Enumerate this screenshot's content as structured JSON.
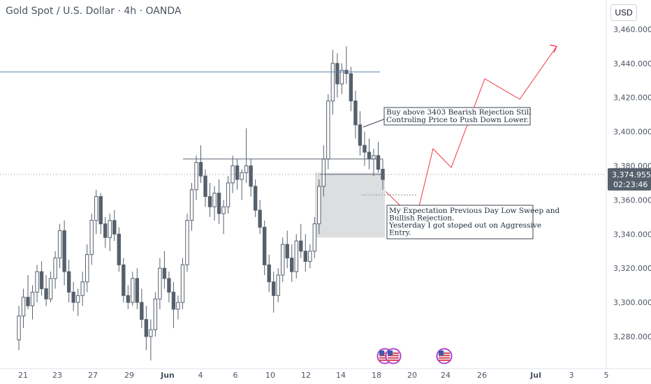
{
  "header": {
    "title": "Gold Spot / U.S. Dollar · 4h · OANDA",
    "currency": "USD"
  },
  "price_tag": {
    "price": "3,374.955",
    "countdown": "02:23:46"
  },
  "annotations": {
    "buy_note": [
      "Buy above 3403 Bearish Rejection Still",
      "Controling Price to Push Down Lower."
    ],
    "expect_note": [
      "My Expectation Previous Day Low Sweep and",
      "Bullish Rejection.",
      "Yesterday I got stoped out on Aggressive",
      "Entry."
    ]
  },
  "colors": {
    "candle": "#56606c",
    "projection": "#f23645",
    "level_line": "#5b7fa8",
    "zone": "#d9dadc",
    "price_tag_bg": "#56606c"
  },
  "chart_data": {
    "type": "candlestick",
    "ylim": [
      3265,
      3470
    ],
    "y_ticks": [
      "3,280.000",
      "3,300.000",
      "3,320.000",
      "3,340.000",
      "3,360.000",
      "3,380.000",
      "3,400.000",
      "3,420.000",
      "3,440.000",
      "3,460.000"
    ],
    "x_ticks": [
      "21",
      "23",
      "27",
      "29",
      "Jun",
      "4",
      "6",
      "10",
      "12",
      "14",
      "18",
      "20",
      "24",
      "26",
      "Jul",
      "3",
      "5"
    ],
    "candles": [
      [
        3278,
        3298,
        3272,
        3292
      ],
      [
        3292,
        3308,
        3285,
        3303
      ],
      [
        3303,
        3316,
        3296,
        3298
      ],
      [
        3298,
        3310,
        3290,
        3306
      ],
      [
        3306,
        3322,
        3300,
        3318
      ],
      [
        3318,
        3324,
        3304,
        3308
      ],
      [
        3308,
        3316,
        3298,
        3302
      ],
      [
        3302,
        3318,
        3300,
        3314
      ],
      [
        3314,
        3330,
        3308,
        3326
      ],
      [
        3326,
        3346,
        3320,
        3342
      ],
      [
        3342,
        3348,
        3310,
        3318
      ],
      [
        3318,
        3325,
        3300,
        3306
      ],
      [
        3306,
        3312,
        3295,
        3300
      ],
      [
        3300,
        3308,
        3292,
        3304
      ],
      [
        3304,
        3318,
        3298,
        3312
      ],
      [
        3312,
        3334,
        3306,
        3328
      ],
      [
        3328,
        3352,
        3322,
        3348
      ],
      [
        3348,
        3366,
        3340,
        3362
      ],
      [
        3362,
        3364,
        3340,
        3346
      ],
      [
        3346,
        3350,
        3332,
        3338
      ],
      [
        3338,
        3352,
        3330,
        3348
      ],
      [
        3348,
        3354,
        3336,
        3340
      ],
      [
        3340,
        3344,
        3318,
        3322
      ],
      [
        3322,
        3326,
        3300,
        3304
      ],
      [
        3304,
        3310,
        3296,
        3300
      ],
      [
        3300,
        3318,
        3298,
        3314
      ],
      [
        3314,
        3320,
        3296,
        3300
      ],
      [
        3300,
        3308,
        3285,
        3290
      ],
      [
        3290,
        3298,
        3272,
        3280
      ],
      [
        3280,
        3290,
        3266,
        3284
      ],
      [
        3284,
        3306,
        3280,
        3302
      ],
      [
        3302,
        3326,
        3296,
        3320
      ],
      [
        3320,
        3330,
        3308,
        3314
      ],
      [
        3314,
        3318,
        3300,
        3306
      ],
      [
        3306,
        3312,
        3285,
        3296
      ],
      [
        3296,
        3304,
        3290,
        3300
      ],
      [
        3300,
        3326,
        3296,
        3322
      ],
      [
        3322,
        3352,
        3318,
        3348
      ],
      [
        3348,
        3370,
        3342,
        3366
      ],
      [
        3366,
        3386,
        3360,
        3382
      ],
      [
        3382,
        3392,
        3370,
        3374
      ],
      [
        3374,
        3378,
        3356,
        3362
      ],
      [
        3362,
        3370,
        3350,
        3356
      ],
      [
        3356,
        3368,
        3348,
        3364
      ],
      [
        3364,
        3372,
        3346,
        3352
      ],
      [
        3352,
        3360,
        3340,
        3356
      ],
      [
        3356,
        3374,
        3352,
        3370
      ],
      [
        3370,
        3386,
        3364,
        3380
      ],
      [
        3380,
        3384,
        3366,
        3372
      ],
      [
        3372,
        3378,
        3360,
        3376
      ],
      [
        3376,
        3402,
        3370,
        3380
      ],
      [
        3380,
        3384,
        3362,
        3368
      ],
      [
        3368,
        3372,
        3350,
        3354
      ],
      [
        3354,
        3360,
        3340,
        3344
      ],
      [
        3344,
        3348,
        3316,
        3322
      ],
      [
        3322,
        3328,
        3306,
        3312
      ],
      [
        3312,
        3318,
        3294,
        3304
      ],
      [
        3304,
        3320,
        3300,
        3316
      ],
      [
        3316,
        3338,
        3312,
        3334
      ],
      [
        3334,
        3342,
        3320,
        3326
      ],
      [
        3326,
        3334,
        3312,
        3318
      ],
      [
        3318,
        3340,
        3314,
        3336
      ],
      [
        3336,
        3346,
        3326,
        3330
      ],
      [
        3330,
        3340,
        3318,
        3324
      ],
      [
        3324,
        3334,
        3320,
        3330
      ],
      [
        3330,
        3350,
        3326,
        3346
      ],
      [
        3346,
        3372,
        3340,
        3368
      ],
      [
        3368,
        3392,
        3362,
        3384
      ],
      [
        3384,
        3422,
        3378,
        3418
      ],
      [
        3418,
        3448,
        3410,
        3440
      ],
      [
        3440,
        3446,
        3420,
        3428
      ],
      [
        3428,
        3440,
        3422,
        3436
      ],
      [
        3436,
        3450,
        3428,
        3434
      ],
      [
        3434,
        3438,
        3412,
        3418
      ],
      [
        3418,
        3424,
        3396,
        3404
      ],
      [
        3404,
        3412,
        3386,
        3392
      ],
      [
        3392,
        3400,
        3380,
        3388
      ],
      [
        3388,
        3396,
        3378,
        3384
      ],
      [
        3384,
        3390,
        3374,
        3386
      ],
      [
        3386,
        3394,
        3376,
        3378
      ],
      [
        3378,
        3384,
        3366,
        3372
      ]
    ],
    "levels": [
      3435,
      3384,
      3369
    ],
    "projection_points": [
      [
        3365,
        3348,
        3390,
        3379,
        3431,
        3419,
        3450
      ]
    ]
  }
}
